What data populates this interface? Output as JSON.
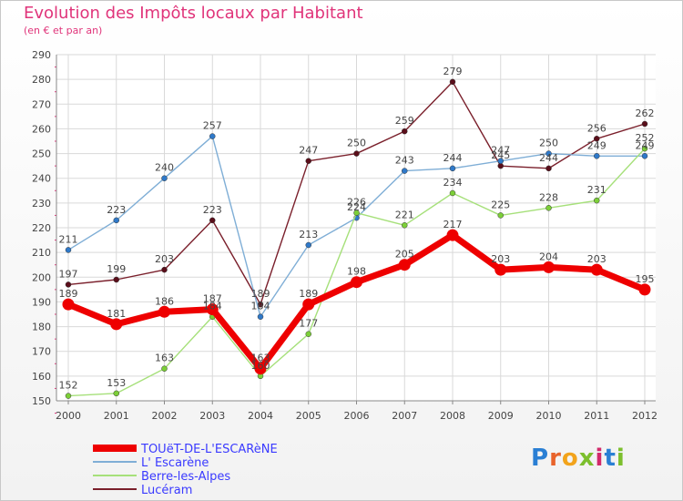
{
  "header": {
    "title": "Evolution des Impôts locaux par Habitant",
    "subtitle": "(en € et par an)"
  },
  "logo": {
    "text": "Proxiti",
    "colors": [
      "#2a7fd4",
      "#e8632b",
      "#f2a31b",
      "#7cbf2d",
      "#d22a6b",
      "#2a7fd4",
      "#7cbf2d"
    ]
  },
  "chart_data": {
    "type": "line",
    "title": "Evolution des Impôts locaux par Habitant",
    "subtitle": "(en € et par an)",
    "xlabel": "",
    "ylabel": "",
    "ylim": [
      150,
      290
    ],
    "yticks": [
      150,
      160,
      170,
      180,
      190,
      200,
      210,
      220,
      230,
      240,
      250,
      260,
      270,
      280,
      290
    ],
    "categories": [
      "2000",
      "2001",
      "2002",
      "2003",
      "2004",
      "2005",
      "2006",
      "2007",
      "2008",
      "2009",
      "2010",
      "2011",
      "2012"
    ],
    "grid": true,
    "legend_position": "bottom-left",
    "series": [
      {
        "name": "Lucéram",
        "color": "#7a1f2b",
        "marker": "#5a0e1a",
        "values": [
          197,
          199,
          203,
          223,
          189,
          247,
          250,
          259,
          279,
          245,
          244,
          256,
          262
        ]
      },
      {
        "name": "L' Escarène",
        "color": "#7faed6",
        "marker": "#2f79c9",
        "values": [
          211,
          223,
          240,
          257,
          184,
          213,
          224,
          243,
          244,
          247,
          250,
          249,
          249
        ]
      },
      {
        "name": "Berre-les-Alpes",
        "color": "#a6e07a",
        "marker": "#7ccf38",
        "values": [
          152,
          153,
          163,
          184,
          160,
          177,
          226,
          221,
          234,
          225,
          228,
          231,
          252
        ]
      },
      {
        "name": "TOUëT-DE-L'ESCARèNE",
        "color": "#ee0000",
        "marker": "#ee0000",
        "values": [
          189,
          181,
          186,
          187,
          163,
          189,
          198,
          205,
          217,
          203,
          204,
          203,
          195
        ]
      }
    ],
    "legend_order": [
      "TOUëT-DE-L'ESCARèNE",
      "L' Escarène",
      "Berre-les-Alpes",
      "Lucéram"
    ]
  }
}
